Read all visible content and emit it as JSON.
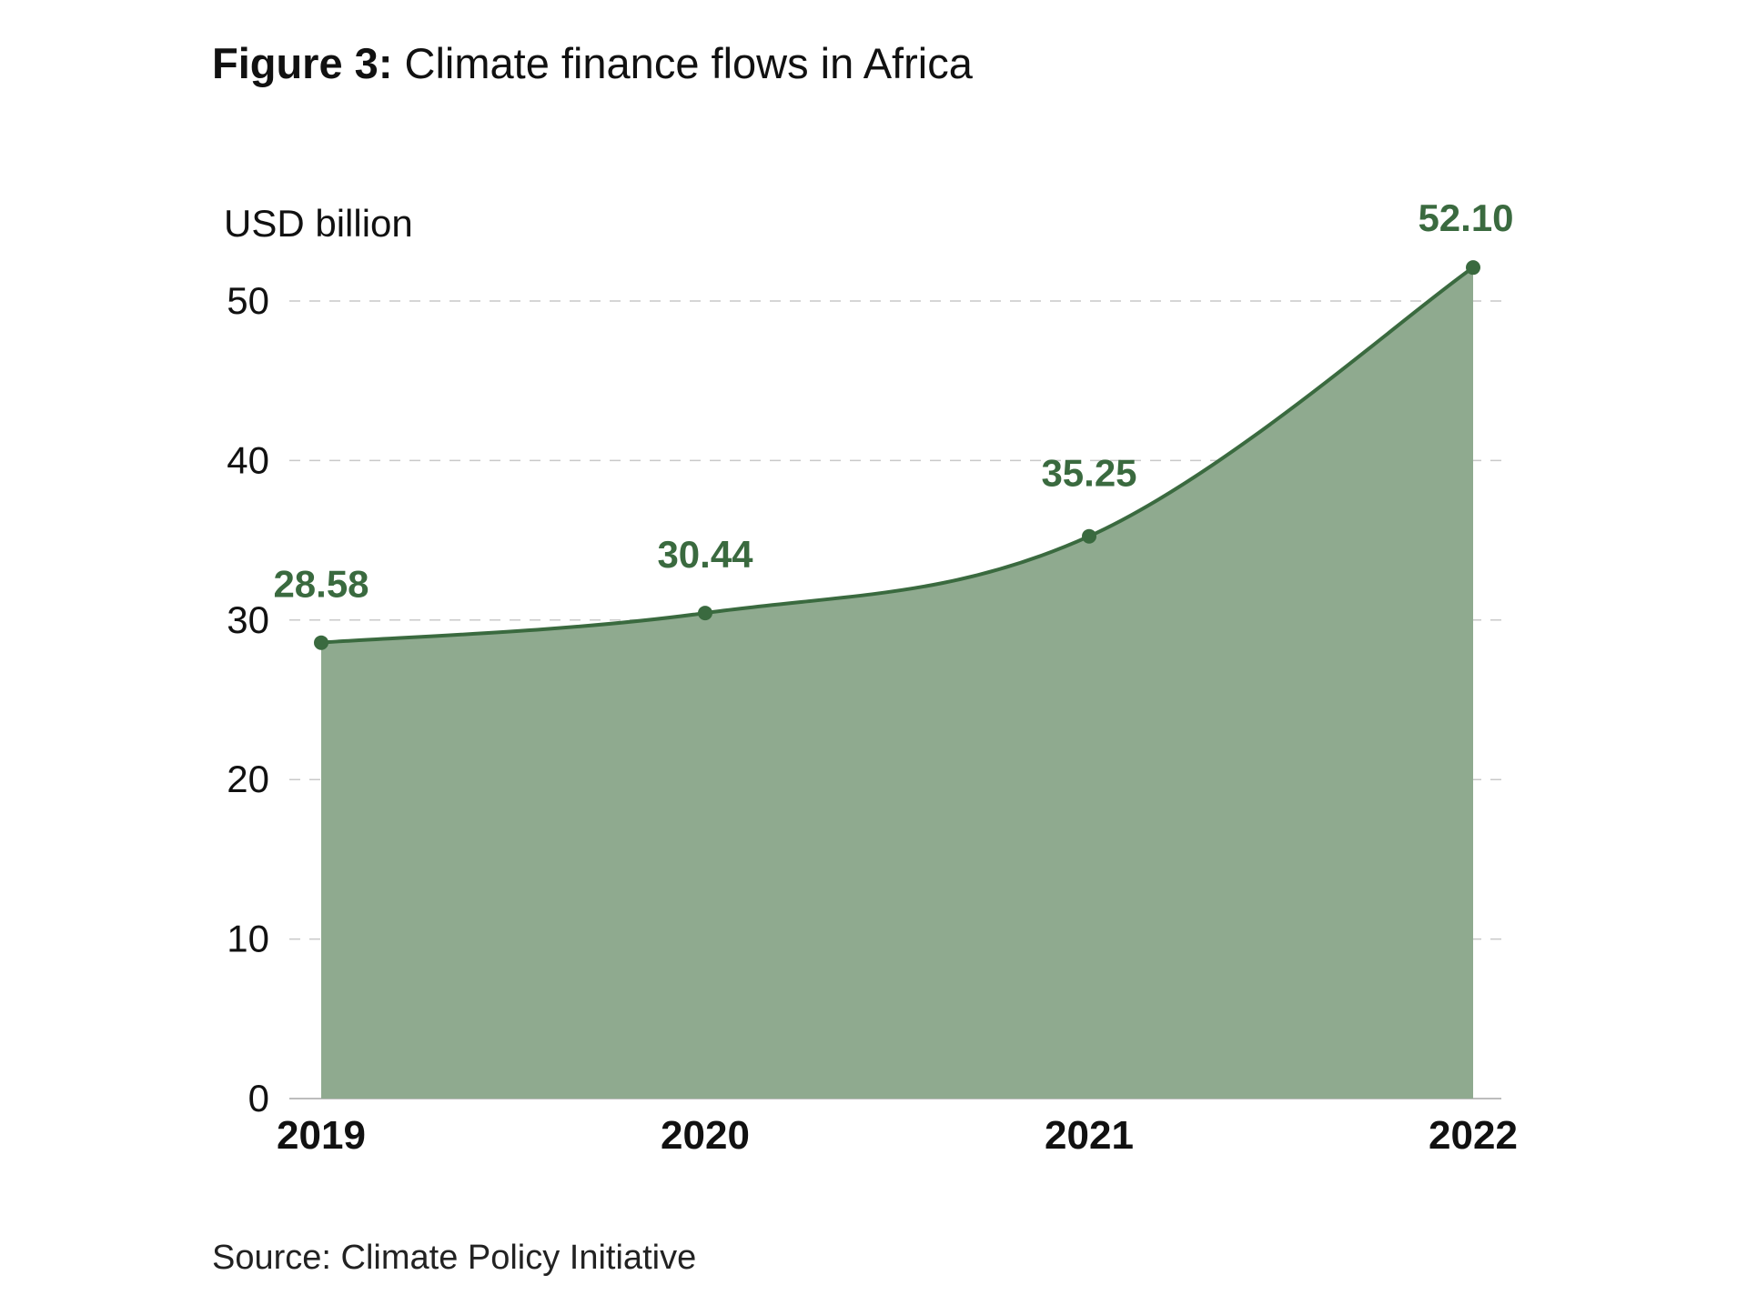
{
  "figure": {
    "label": "Figure 3:",
    "title": "Climate finance flows in Africa",
    "source": "Source: Climate Policy Initiative"
  },
  "colors": {
    "line": "#3a6a3f",
    "area": "#8faa8f",
    "grid": "#c9c9c9",
    "text": "#111111"
  },
  "chart_data": {
    "type": "area",
    "ylabel": "USD billion",
    "x": [
      "2019",
      "2020",
      "2021",
      "2022"
    ],
    "series": [
      {
        "values": [
          28.58,
          30.44,
          35.25,
          52.1
        ],
        "data_labels": [
          "28.58",
          "30.44",
          "35.25",
          "52.10"
        ]
      }
    ],
    "ylim": [
      0,
      50
    ],
    "yticks": [
      0,
      10,
      20,
      30,
      40,
      50
    ],
    "grid": "horizontal dashed",
    "legend": "none"
  }
}
